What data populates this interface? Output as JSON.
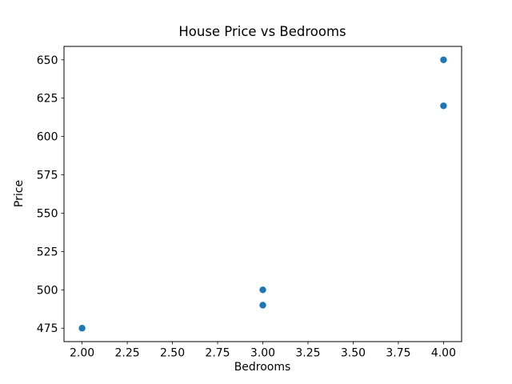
{
  "chart_data": {
    "type": "scatter",
    "title": "House Price vs Bedrooms",
    "xlabel": "Bedrooms",
    "ylabel": "Price",
    "points": [
      {
        "x": 2,
        "y": 475
      },
      {
        "x": 3,
        "y": 490
      },
      {
        "x": 3,
        "y": 500
      },
      {
        "x": 4,
        "y": 620
      },
      {
        "x": 4,
        "y": 650
      }
    ],
    "xlim": [
      1.9,
      4.1
    ],
    "ylim": [
      466.25,
      658.75
    ],
    "xticks": {
      "values": [
        2.0,
        2.25,
        2.5,
        2.75,
        3.0,
        3.25,
        3.5,
        3.75,
        4.0
      ],
      "labels": [
        "2.00",
        "2.25",
        "2.50",
        "2.75",
        "3.00",
        "3.25",
        "3.50",
        "3.75",
        "4.00"
      ]
    },
    "yticks": {
      "values": [
        475,
        500,
        525,
        550,
        575,
        600,
        625,
        650
      ],
      "labels": [
        "475",
        "500",
        "525",
        "550",
        "575",
        "600",
        "625",
        "650"
      ]
    },
    "grid": false,
    "legend": null,
    "marker_color": "#1f77b4",
    "spine_color": "#000000"
  }
}
